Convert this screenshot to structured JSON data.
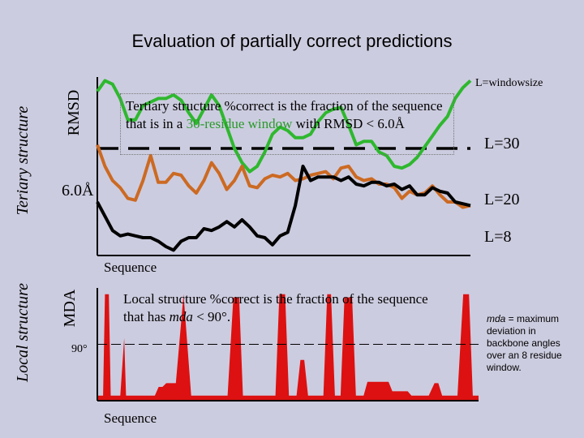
{
  "title": "Evaluation of partially correct predictions",
  "side_labels": {
    "tertiary": "Teriary structure",
    "local": "Local structure"
  },
  "chart_data": [
    {
      "type": "line",
      "title": "Tertiary structure",
      "ylabel": "RMSD",
      "xlabel": "Sequence",
      "x": [
        0,
        1,
        2,
        3,
        4,
        5,
        6,
        7,
        8,
        9,
        10,
        11,
        12,
        13,
        14,
        15,
        16,
        17,
        18,
        19,
        20,
        21,
        22,
        23,
        24,
        25,
        26,
        27,
        28,
        29,
        30,
        31,
        32,
        33,
        34,
        35,
        36,
        37,
        38,
        39,
        40,
        41,
        42,
        43,
        44,
        45,
        46,
        47,
        48,
        49
      ],
      "ylim": [
        0,
        10
      ],
      "threshold": {
        "label": "6.0Å",
        "value": 6.0
      },
      "series": [
        {
          "name": "L=30",
          "color": "#2eb82e",
          "values": [
            9.2,
            9.8,
            9.6,
            8.8,
            7.6,
            7.6,
            8.4,
            8.6,
            8.8,
            8.8,
            9.0,
            8.7,
            8.0,
            7.4,
            8.2,
            9.0,
            8.4,
            7.2,
            6.0,
            5.2,
            4.7,
            5.0,
            5.8,
            6.8,
            7.2,
            7.0,
            6.6,
            6.6,
            6.8,
            7.5,
            8.0,
            8.2,
            8.3,
            7.3,
            6.2,
            6.4,
            6.4,
            5.8,
            5.6,
            5.0,
            4.9,
            5.1,
            5.5,
            6.1,
            6.7,
            7.3,
            7.8,
            8.8,
            9.4,
            9.8
          ]
        },
        {
          "name": "L=20",
          "color": "#cc6a22",
          "values": [
            6.2,
            5.0,
            4.2,
            3.8,
            3.2,
            3.1,
            4.2,
            5.6,
            4.1,
            4.1,
            4.6,
            4.5,
            3.9,
            3.5,
            4.2,
            5.2,
            4.6,
            3.7,
            4.2,
            5.0,
            3.9,
            3.8,
            4.3,
            4.5,
            4.4,
            4.6,
            4.2,
            4.3,
            4.5,
            4.6,
            4.7,
            4.3,
            4.9,
            5.0,
            4.4,
            4.2,
            4.3,
            4.0,
            4.0,
            3.8,
            3.2,
            3.6,
            3.4,
            3.5,
            3.9,
            3.4,
            3.0,
            3.0,
            2.7,
            2.8
          ]
        },
        {
          "name": "L=8",
          "color": "#000000",
          "values": [
            3.0,
            2.2,
            1.4,
            1.1,
            1.2,
            1.1,
            1.0,
            1.0,
            0.8,
            0.5,
            0.3,
            0.8,
            1.0,
            1.0,
            1.5,
            1.4,
            1.6,
            1.9,
            1.6,
            2.0,
            1.6,
            1.1,
            1.0,
            0.6,
            1.1,
            1.3,
            2.8,
            5.0,
            4.2,
            4.4,
            4.4,
            4.4,
            4.2,
            4.4,
            4.0,
            3.9,
            4.1,
            4.1,
            3.9,
            4.0,
            3.7,
            3.9,
            3.4,
            3.4,
            3.8,
            3.6,
            3.5,
            3.0,
            2.9,
            2.8
          ]
        }
      ]
    },
    {
      "type": "area",
      "title": "Local structure",
      "ylabel": "MDA",
      "xlabel": "Sequence",
      "ylim": [
        0,
        180
      ],
      "threshold": {
        "label": "90°",
        "value": 90
      },
      "series": [
        {
          "name": "mda",
          "color": "#dd1111",
          "points": [
            [
              0,
              8
            ],
            [
              3,
              8
            ],
            [
              4,
              170
            ],
            [
              6,
              170
            ],
            [
              7,
              8
            ],
            [
              12,
              8
            ],
            [
              14,
              100
            ],
            [
              15,
              8
            ],
            [
              30,
              8
            ],
            [
              32,
              22
            ],
            [
              34,
              22
            ],
            [
              36,
              28
            ],
            [
              41,
              28
            ],
            [
              45,
              170
            ],
            [
              49,
              8
            ],
            [
              68,
              8
            ],
            [
              71,
              165
            ],
            [
              74,
              165
            ],
            [
              76,
              8
            ],
            [
              93,
              8
            ],
            [
              95,
              170
            ],
            [
              98,
              170
            ],
            [
              100,
              8
            ],
            [
              104,
              8
            ],
            [
              106,
              65
            ],
            [
              108,
              65
            ],
            [
              110,
              8
            ],
            [
              118,
              8
            ],
            [
              120,
              170
            ],
            [
              122,
              170
            ],
            [
              124,
              8
            ],
            [
              127,
              8
            ],
            [
              129,
              165
            ],
            [
              133,
              165
            ],
            [
              135,
              8
            ],
            [
              139,
              8
            ],
            [
              141,
              30
            ],
            [
              152,
              30
            ],
            [
              154,
              15
            ],
            [
              162,
              15
            ],
            [
              164,
              8
            ],
            [
              173,
              8
            ],
            [
              176,
              28
            ],
            [
              178,
              28
            ],
            [
              180,
              8
            ],
            [
              188,
              8
            ],
            [
              191,
              170
            ],
            [
              194,
              170
            ],
            [
              196,
              8
            ],
            [
              199,
              8
            ]
          ]
        }
      ]
    }
  ],
  "labels": {
    "rmsd": "RMSD",
    "mda": "MDA",
    "threshold_rmsd": "6.0Å",
    "threshold_mda": "90°",
    "sequence_top": "Sequence",
    "sequence_bottom": "Sequence"
  },
  "note_tertiary": {
    "pre": "Tertiary structure %correct is the fraction of the sequence that is in a ",
    "highlight": "30-residue window",
    "post": " with RMSD < 6.0Å"
  },
  "note_local": {
    "pre": "Local structure %correct is the fraction of the sequence that has ",
    "italic": "mda",
    "post": " < 90°."
  },
  "window_size_label": "L=windowsize",
  "legend": {
    "l30": "L=30",
    "l20": "L=20",
    "l8": "L=8"
  },
  "definition": {
    "italic": "mda",
    "text": " = maximum deviation in backbone angles over an 8 residue window."
  },
  "colors": {
    "background": "#cccce0",
    "green": "#2eb82e",
    "orange": "#cc6a22",
    "red": "#dd1111"
  }
}
